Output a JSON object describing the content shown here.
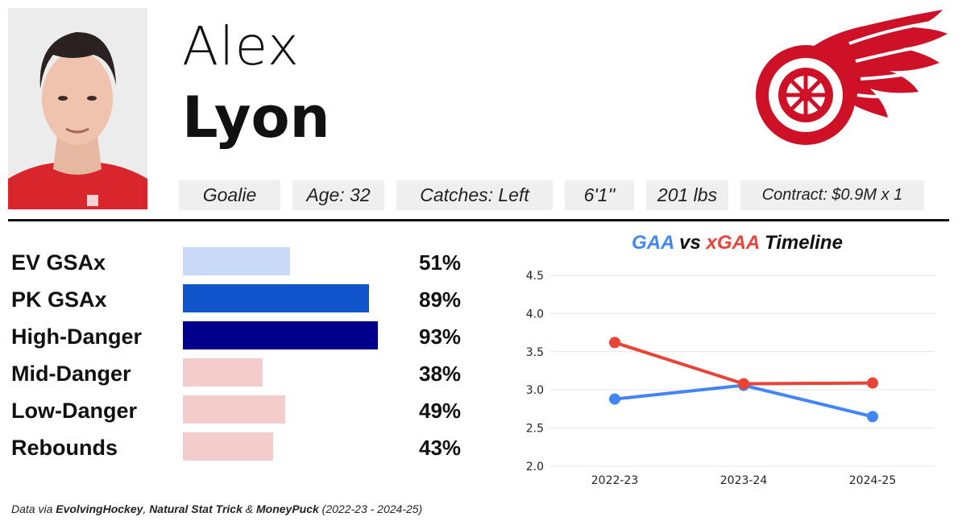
{
  "player": {
    "first_name": "Alex",
    "last_name": "Lyon",
    "position": "Goalie",
    "age": "Age: 32",
    "catches": "Catches: Left",
    "height": "6'1''",
    "weight": "201 lbs",
    "contract": "Contract: $0.9M x 1"
  },
  "team_logo": {
    "name": "red-wings-logo-icon",
    "color": "#ce1126"
  },
  "metrics": [
    {
      "label": "EV GSAx",
      "pct_label": "51%",
      "value": 51,
      "color": "#c9daf8"
    },
    {
      "label": "PK GSAx",
      "pct_label": "89%",
      "value": 89,
      "color": "#1155cc"
    },
    {
      "label": "High-Danger",
      "pct_label": "93%",
      "value": 93,
      "color": "#00008b"
    },
    {
      "label": "Mid-Danger",
      "pct_label": "38%",
      "value": 38,
      "color": "#f4cccc"
    },
    {
      "label": "Low-Danger",
      "pct_label": "49%",
      "value": 49,
      "color": "#f4cccc"
    },
    {
      "label": "Rebounds",
      "pct_label": "43%",
      "value": 43,
      "color": "#f4cccc"
    }
  ],
  "chart_title": {
    "gaa": "GAA",
    "vs": "vs",
    "xgaa": "xGAA",
    "rest": "Timeline"
  },
  "chart_data": {
    "type": "line",
    "title": "GAA vs xGAA Timeline",
    "categories": [
      "2022-23",
      "2023-24",
      "2024-25"
    ],
    "series": [
      {
        "name": "GAA",
        "color": "#4285f4",
        "values": [
          2.88,
          3.06,
          2.65
        ]
      },
      {
        "name": "xGAA",
        "color": "#ea4335",
        "values": [
          3.62,
          3.08,
          3.09
        ]
      }
    ],
    "yticks": [
      "2.0",
      "2.5",
      "3.0",
      "3.5",
      "4.0",
      "4.5"
    ],
    "ylim": [
      2.0,
      4.5
    ],
    "grid": true,
    "legend": "none"
  },
  "footer": {
    "prefix": "Data via ",
    "src1": "EvolvingHockey",
    "sep1": ", ",
    "src2": "Natural Stat Trick",
    "sep2": " & ",
    "src3": "MoneyPuck",
    "suffix": " (2022-23 - 2024-25)"
  }
}
